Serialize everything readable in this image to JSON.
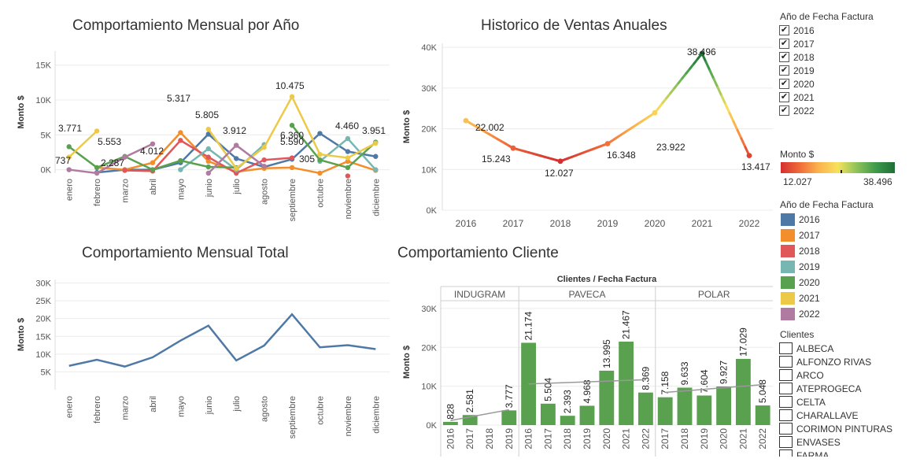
{
  "colors": {
    "2016": "#4e79a7",
    "2017": "#f28e2b",
    "2018": "#e15759",
    "2019": "#76b7b2",
    "2020": "#59a14f",
    "2021": "#edc948",
    "2022": "#b07aa1",
    "total_line": "#4e79a7",
    "bar": "#59a14f",
    "trend": "#999999"
  },
  "sidebar": {
    "filter_title": "Año de Fecha Factura",
    "filter_years": [
      "2016",
      "2017",
      "2018",
      "2019",
      "2020",
      "2021",
      "2022"
    ],
    "color_legend_title": "Monto $",
    "color_min": "12.027",
    "color_max": "38.496",
    "year_legend_title": "Año de Fecha Factura",
    "clientes_title": "Clientes",
    "clientes": [
      "ALBECA",
      "ALFONZO RIVAS",
      "ARCO",
      "ATEPROGECA",
      "CELTA",
      "CHARALLAVE",
      "CORIMON PINTURAS",
      "ENVASES",
      "FARMA"
    ]
  },
  "chart_data": [
    {
      "id": "mensual_por_ano",
      "type": "line",
      "title": "Comportamiento Mensual por Año",
      "ylabel": "Monto $",
      "yticks": [
        "0K",
        "5K",
        "10K",
        "15K"
      ],
      "ylim": [
        -500,
        17000
      ],
      "categories": [
        "enero",
        "febrero",
        "marzo",
        "abril",
        "mayo",
        "junio",
        "julio",
        "agosto",
        "septiembre",
        "octubre",
        "noviembre",
        "diciembre"
      ],
      "series": [
        {
          "name": "2016",
          "values": [
            null,
            -400,
            0,
            0,
            1000,
            5100,
            1600,
            400,
            1500,
            5200,
            2600,
            1900
          ]
        },
        {
          "name": "2017",
          "values": [
            null,
            300,
            0,
            1000,
            5317,
            1200,
            -300,
            200,
            300,
            -500,
            1200,
            -100
          ]
        },
        {
          "name": "2018",
          "values": [
            null,
            null,
            -100,
            -200,
            4200,
            1800,
            -500,
            1400,
            1700,
            null,
            -900,
            null
          ]
        },
        {
          "name": "2019",
          "values": [
            null,
            null,
            null,
            null,
            0,
            3000,
            0,
            3600,
            null,
            1200,
            4460,
            0
          ]
        },
        {
          "name": "2020",
          "values": [
            3300,
            300,
            1900,
            0,
            1300,
            400,
            300,
            null,
            6360,
            1400,
            300,
            3951
          ]
        },
        {
          "name": "2021",
          "values": [
            1800,
            5553,
            null,
            null,
            null,
            5805,
            200,
            3200,
            10475,
            2200,
            1700,
            3800
          ]
        },
        {
          "name": "2022",
          "values": [
            0,
            -500,
            1800,
            3700,
            null,
            -500,
            3500,
            500,
            null,
            null,
            null,
            null
          ]
        }
      ],
      "labels": [
        "3.771",
        "737",
        "5.553",
        "2.287",
        "4.012",
        "5.317",
        "5.805",
        "3.912",
        "10.475",
        "6.360",
        "5.590",
        "305",
        "4.460",
        "3.951"
      ]
    },
    {
      "id": "historico",
      "type": "line",
      "title": "Historico de Ventas Anuales",
      "ylabel": "Monto $",
      "yticks": [
        "0K",
        "10K",
        "20K",
        "30K",
        "40K"
      ],
      "ylim": [
        0,
        41000
      ],
      "categories": [
        "2016",
        "2017",
        "2018",
        "2019",
        "2020",
        "2021",
        "2022"
      ],
      "values": [
        22002,
        15243,
        12027,
        16348,
        23922,
        38496,
        13417
      ],
      "labels": [
        "22.002",
        "15.243",
        "12.027",
        "16.348",
        "23.922",
        "38.496",
        "13.417"
      ]
    },
    {
      "id": "mensual_total",
      "type": "line",
      "title": "Comportamiento Mensual Total",
      "ylabel": "Monto $",
      "yticks": [
        "5K",
        "10K",
        "15K",
        "20K",
        "25K",
        "30K"
      ],
      "ylim": [
        0,
        31000
      ],
      "categories": [
        "enero",
        "febrero",
        "marzo",
        "abril",
        "mayo",
        "junio",
        "julio",
        "agosto",
        "septiembre",
        "octubre",
        "noviembre",
        "diciembre"
      ],
      "values": [
        6700,
        8400,
        6500,
        9100,
        13800,
        18000,
        8200,
        12400,
        21200,
        11900,
        12500,
        11400
      ]
    },
    {
      "id": "cliente",
      "type": "bar",
      "title": "Comportamiento Cliente",
      "subtitle": "Clientes / Fecha Factura",
      "ylabel": "Monto $",
      "yticks": [
        "0K",
        "10K",
        "20K",
        "30K"
      ],
      "ylim": [
        0,
        32000
      ],
      "groups": [
        {
          "name": "INDUGRAM",
          "years": [
            "2016",
            "2017",
            "2018",
            "2019"
          ],
          "values": [
            828,
            2581,
            null,
            3777
          ],
          "labels": [
            "828",
            "2.581",
            "",
            "3.777"
          ]
        },
        {
          "name": "PAVECA",
          "years": [
            "2016",
            "2017",
            "2018",
            "2019",
            "2020",
            "2021",
            "2022"
          ],
          "values": [
            21174,
            5504,
            2393,
            4968,
            13995,
            21467,
            8369
          ],
          "labels": [
            "21.174",
            "5.504",
            "2.393",
            "4.968",
            "13.995",
            "21.467",
            "8.369"
          ]
        },
        {
          "name": "POLAR",
          "years": [
            "2017",
            "2018",
            "2019",
            "2020",
            "2021",
            "2022"
          ],
          "values": [
            7158,
            9633,
            7604,
            9927,
            17029,
            5048
          ],
          "labels": [
            "7.158",
            "9.633",
            "7.604",
            "9.927",
            "17.029",
            "5.048"
          ]
        }
      ]
    }
  ]
}
